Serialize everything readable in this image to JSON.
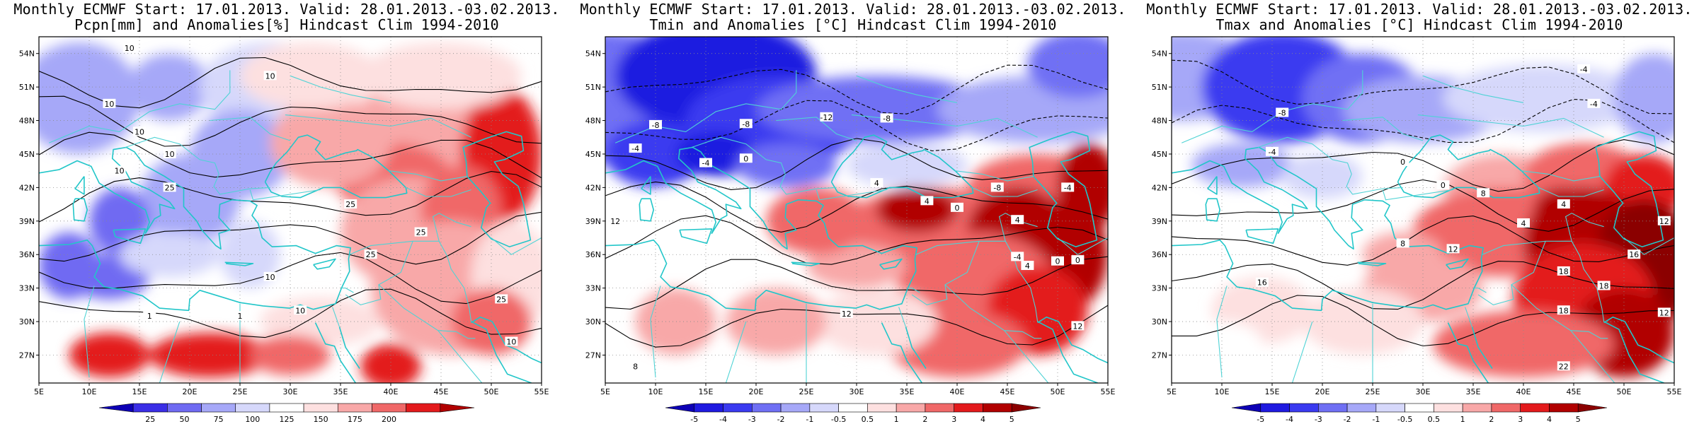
{
  "panels": [
    {
      "title_line1": "Monthly ECMWF Start: 17.01.2013. Valid: 28.01.2013.-03.02.2013.",
      "title_line2": "Pcpn[mm] and Anomalies[%] Hindcast Clim 1994-2010",
      "variable": "precipitation",
      "colorbar": {
        "labels": [
          "25",
          "50",
          "75",
          "100",
          "125",
          "150",
          "175",
          "200"
        ],
        "colors": [
          "#0d00b5",
          "#3a2ee6",
          "#6f6af2",
          "#a6a8f8",
          "#d6d8fb",
          "#ffffff",
          "#fde0e0",
          "#f8a8a8",
          "#f06868",
          "#e31a1c",
          "#b10000"
        ]
      },
      "contour_labels": [
        "10",
        "10",
        "10",
        "10",
        "10",
        "10",
        "25",
        "25",
        "25",
        "25",
        "10",
        "1",
        "1",
        "10",
        "25",
        "10"
      ]
    },
    {
      "title_line1": "Monthly ECMWF Start: 17.01.2013. Valid: 28.01.2013.-03.02.2013.",
      "title_line2": "Tmin and Anomalies [°C] Hindcast Clim 1994-2010",
      "variable": "tmin",
      "colorbar": {
        "labels": [
          "-5",
          "-4",
          "-3",
          "-2",
          "-1",
          "-0.5",
          "0.5",
          "1",
          "2",
          "3",
          "4",
          "5"
        ],
        "colors": [
          "#0d00b5",
          "#1f1ae0",
          "#3a3af0",
          "#6f6ff4",
          "#a6a8f8",
          "#d6d8fb",
          "#ffffff",
          "#fde0e0",
          "#f8a8a8",
          "#f06868",
          "#e31a1c",
          "#b10000",
          "#8b0000"
        ]
      },
      "contour_labels": [
        "-12",
        "-8",
        "-8",
        "-8",
        "-4",
        "-4",
        "0",
        "4",
        "-8",
        "-4",
        "4",
        "0",
        "4",
        "12",
        "8",
        "12",
        "4",
        "0",
        "-4",
        "12",
        "0"
      ]
    },
    {
      "title_line1": "Monthly ECMWF Start: 17.01.2013. Valid: 28.01.2013.-03.02.2013.",
      "title_line2": "Tmax and Anomalies [°C] Hindcast Clim 1994-2010",
      "variable": "tmax",
      "colorbar": {
        "labels": [
          "-5",
          "-4",
          "-3",
          "-2",
          "-1",
          "-0.5",
          "0.5",
          "1",
          "2",
          "3",
          "4",
          "5"
        ],
        "colors": [
          "#0d00b5",
          "#1f1ae0",
          "#3a3af0",
          "#6f6ff4",
          "#a6a8f8",
          "#d6d8fb",
          "#ffffff",
          "#fde0e0",
          "#f8a8a8",
          "#f06868",
          "#e31a1c",
          "#b10000",
          "#8b0000"
        ]
      },
      "contour_labels": [
        "-4",
        "-8",
        "-4",
        "-4",
        "0",
        "4",
        "0",
        "8",
        "4",
        "12",
        "16",
        "18",
        "12",
        "8",
        "16",
        "18",
        "18",
        "22",
        "12"
      ]
    }
  ],
  "lat_labels": [
    "54N",
    "51N",
    "48N",
    "45N",
    "42N",
    "39N",
    "36N",
    "33N",
    "30N",
    "27N"
  ],
  "lon_labels": [
    "5E",
    "10E",
    "15E",
    "20E",
    "25E",
    "30E",
    "35E",
    "40E",
    "45E",
    "50E",
    "55E"
  ]
}
